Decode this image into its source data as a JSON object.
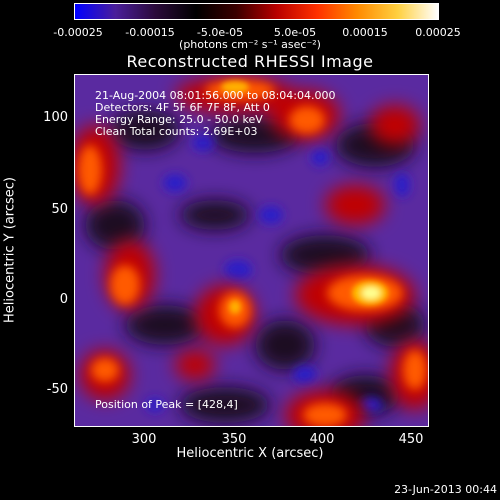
{
  "colorbar": {
    "gradient_colors": [
      "#0000ff",
      "#4a1e9a",
      "#2a0a3a",
      "#000000",
      "#3a0000",
      "#b80000",
      "#ff3000",
      "#ff8a00",
      "#ffd040",
      "#ffffff"
    ],
    "ticks": [
      "-0.00025",
      "-0.00015",
      "-5.0e-05",
      "5.0e-05",
      "0.00015",
      "0.00025"
    ],
    "units": "(photons cm⁻² s⁻¹ asec⁻²)"
  },
  "title": "Reconstructed RHESSI Image",
  "info": {
    "line1": "21-Aug-2004 08:01:56.000 to 08:04:04.000",
    "line2": "Detectors: 4F 5F 6F 7F 8F, Att 0",
    "line3": "Energy Range: 25.0 - 50.0 keV",
    "line4": "Clean     Total counts: 2.69E+03"
  },
  "peak_text": "Position of Peak = [428,4]",
  "axes": {
    "xlabel": "Heliocentric X (arcsec)",
    "ylabel": "Heliocentric Y (arcsec)",
    "xticks": [
      "300",
      "350",
      "400",
      "450"
    ],
    "yticks": [
      "100",
      "50",
      "0",
      "-50"
    ]
  },
  "footer_date": "23-Jun-2013 00:44"
}
